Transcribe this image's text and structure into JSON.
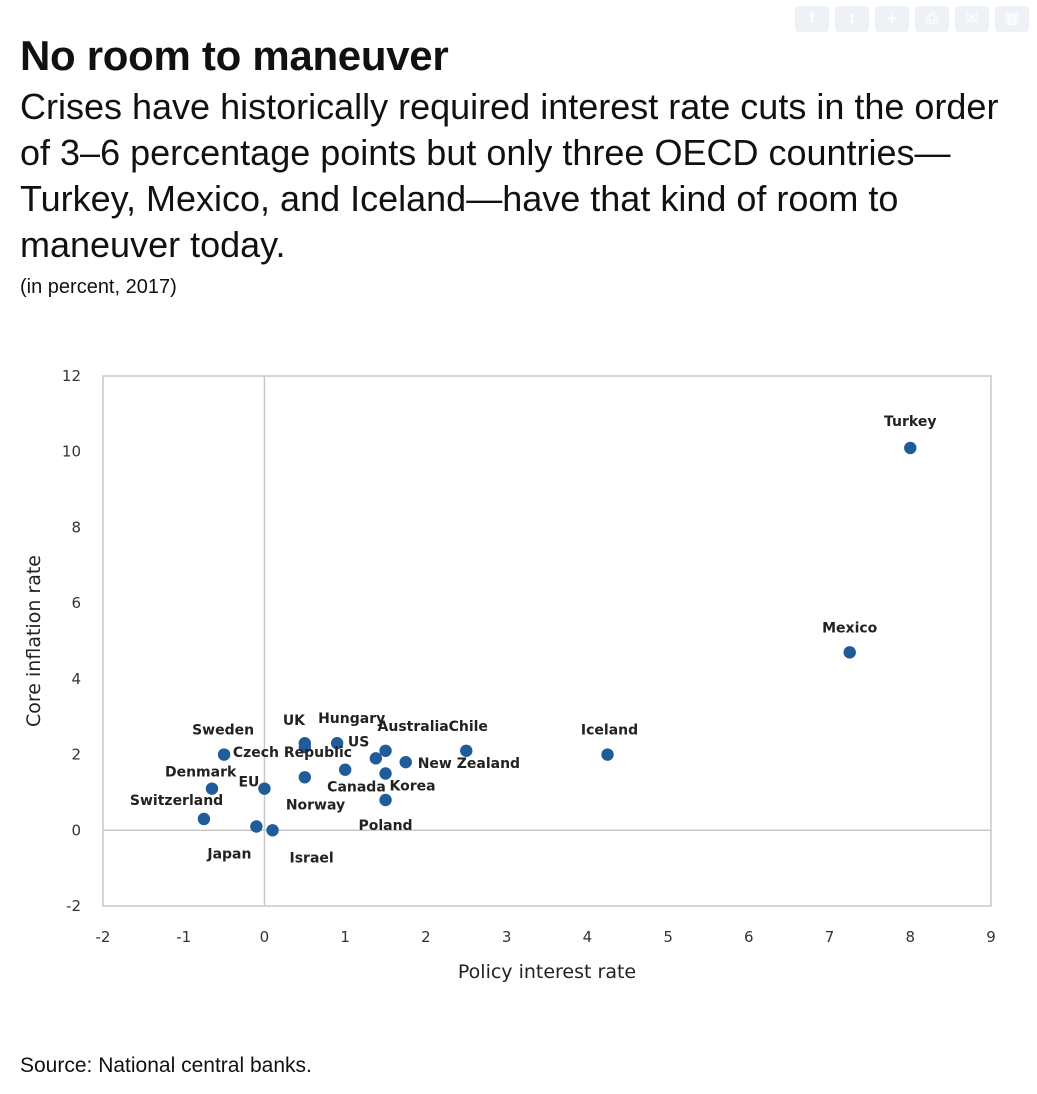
{
  "share_icons": [
    "facebook-icon",
    "twitter-icon",
    "plus-icon",
    "print-icon",
    "email-icon",
    "more-icon"
  ],
  "header": {
    "title": "No room to maneuver",
    "subtitle": "Crises have historically required interest rate cuts in the order of 3–6 percentage points but only three OECD countries—Turkey, Mexico, and Iceland—have that kind of room to maneuver today.",
    "unit": "(in percent, 2017)"
  },
  "chart_data": {
    "type": "scatter",
    "title": "No room to maneuver",
    "subtitle": "(in percent, 2017)",
    "xlabel": "Policy interest rate",
    "ylabel": "Core inflation rate",
    "xlim": [
      -2,
      9
    ],
    "ylim": [
      -2,
      12
    ],
    "xticks": [
      -2,
      -1,
      0,
      1,
      2,
      3,
      4,
      5,
      6,
      7,
      8,
      9
    ],
    "yticks": [
      -2,
      0,
      2,
      4,
      6,
      8,
      10,
      12
    ],
    "reference_lines": {
      "x": 0,
      "y": 0
    },
    "grid": false,
    "color": "#1f5c99",
    "points": [
      {
        "label": "Turkey",
        "x": 8.0,
        "y": 10.1
      },
      {
        "label": "Mexico",
        "x": 7.25,
        "y": 4.7
      },
      {
        "label": "Iceland",
        "x": 4.25,
        "y": 2.0
      },
      {
        "label": "Chile",
        "x": 2.5,
        "y": 2.1
      },
      {
        "label": "Australia",
        "x": 1.5,
        "y": 2.1
      },
      {
        "label": "New Zealand",
        "x": 1.75,
        "y": 1.8
      },
      {
        "label": "Korea",
        "x": 1.5,
        "y": 1.5
      },
      {
        "label": "Canada",
        "x": 1.0,
        "y": 1.6
      },
      {
        "label": "Poland",
        "x": 1.5,
        "y": 0.8
      },
      {
        "label": "Hungary",
        "x": 0.9,
        "y": 2.3
      },
      {
        "label": "US",
        "x": 1.38,
        "y": 1.9
      },
      {
        "label": "UK",
        "x": 0.5,
        "y": 2.3
      },
      {
        "label": "Czech Republic",
        "x": 0.5,
        "y": 2.2
      },
      {
        "label": "Norway",
        "x": 0.5,
        "y": 1.4
      },
      {
        "label": "Sweden",
        "x": -0.5,
        "y": 2.0
      },
      {
        "label": "Denmark",
        "x": -0.65,
        "y": 1.1
      },
      {
        "label": "EU",
        "x": 0.0,
        "y": 1.1
      },
      {
        "label": "Switzerland",
        "x": -0.75,
        "y": 0.3
      },
      {
        "label": "Japan",
        "x": -0.1,
        "y": 0.1
      },
      {
        "label": "Israel",
        "x": 0.1,
        "y": 0.0
      }
    ]
  },
  "footer": {
    "source": "Source: National central banks."
  }
}
